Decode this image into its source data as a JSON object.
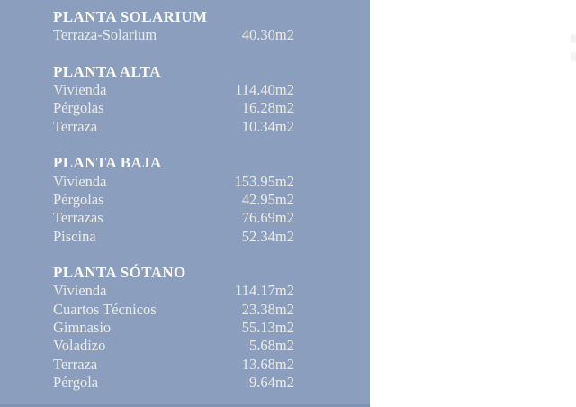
{
  "panel": {
    "background": "#8c9ebd",
    "bottom_edge_color": "#7d92b3",
    "text_color_header": "#f9f9f5",
    "text_color_body": "#ebece8"
  },
  "area_table": {
    "unit_suffix": "m2",
    "sections": [
      {
        "title": "PLANTA SOLARIUM",
        "rows": [
          {
            "label": "Terraza-Solarium",
            "value": "40.30m2"
          }
        ]
      },
      {
        "title": "PLANTA ALTA",
        "rows": [
          {
            "label": "Vivienda",
            "value": "114.40m2"
          },
          {
            "label": "Pérgolas",
            "value": "16.28m2"
          },
          {
            "label": "Terraza",
            "value": "10.34m2"
          }
        ]
      },
      {
        "title": "PLANTA BAJA",
        "rows": [
          {
            "label": "Vivienda",
            "value": "153.95m2"
          },
          {
            "label": "Pérgolas",
            "value": "42.95m2"
          },
          {
            "label": "Terrazas",
            "value": "76.69m2"
          },
          {
            "label": "Piscina",
            "value": "52.34m2"
          }
        ]
      },
      {
        "title": "PLANTA SÓTANO",
        "rows": [
          {
            "label": "Vivienda",
            "value": "114.17m2"
          },
          {
            "label": "Cuartos Técnicos",
            "value": "23.38m2"
          },
          {
            "label": "Gimnasio",
            "value": "55.13m2"
          },
          {
            "label": "Voladizo",
            "value": "5.68m2"
          },
          {
            "label": "Terraza",
            "value": "13.68m2"
          },
          {
            "label": "Pérgola",
            "value": "9.64m2"
          }
        ]
      }
    ]
  }
}
